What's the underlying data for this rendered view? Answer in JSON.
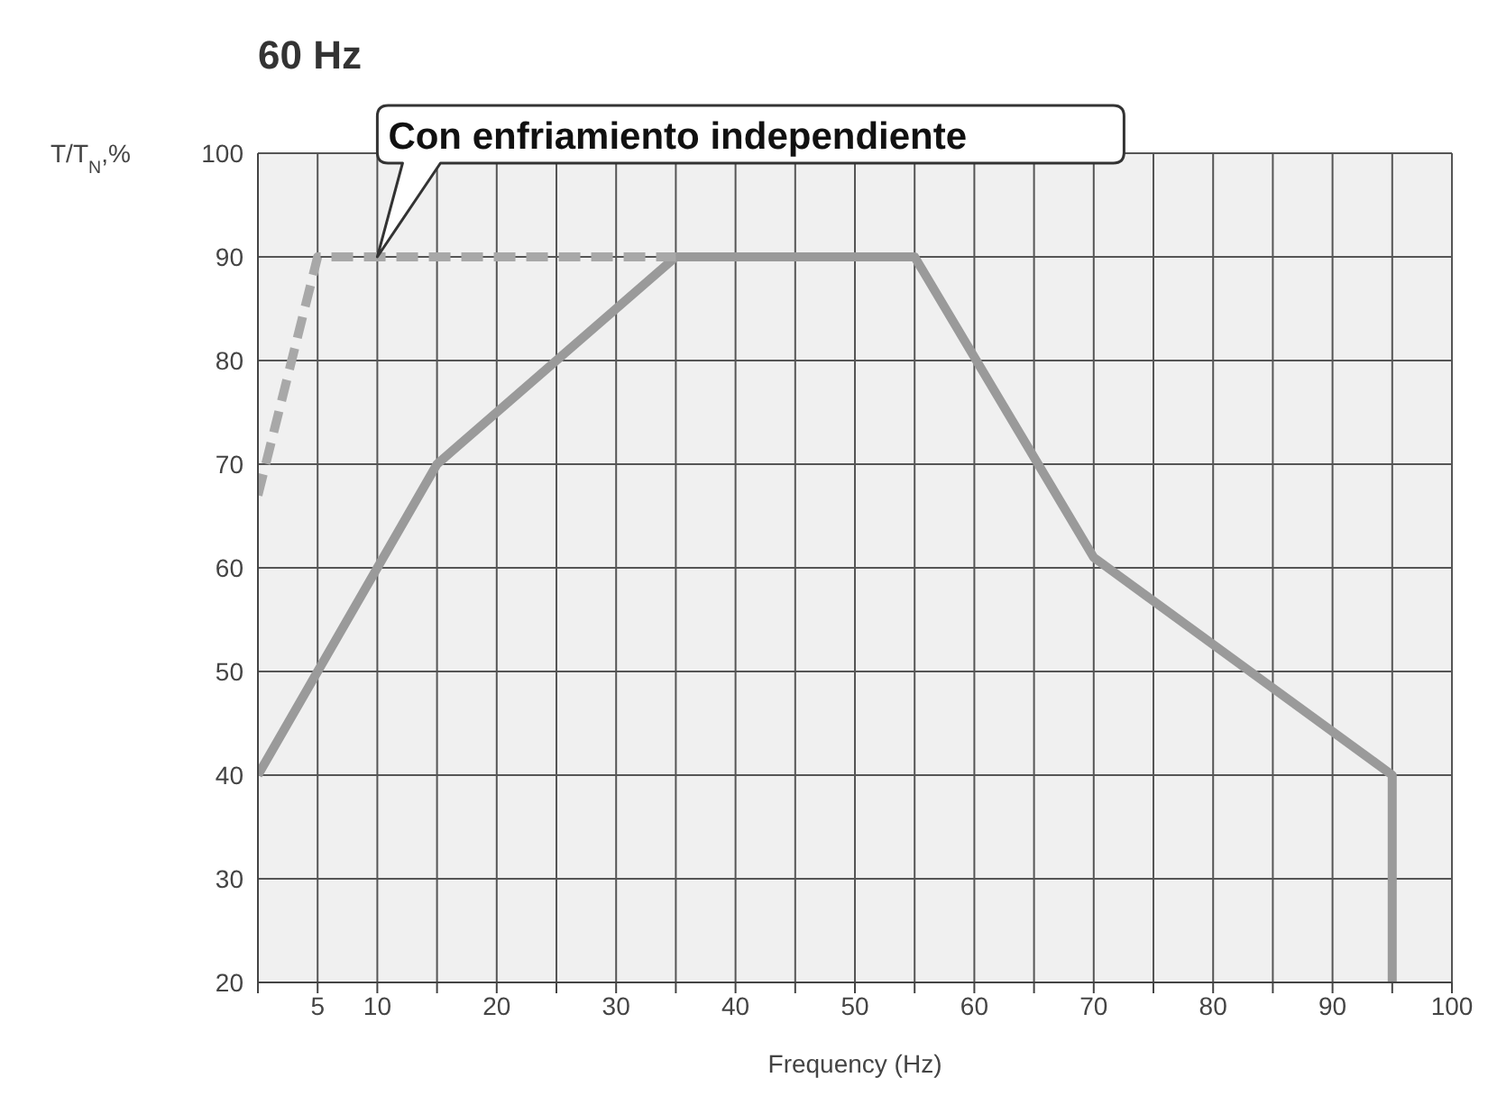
{
  "chart_data": {
    "type": "line",
    "title": "60 Hz",
    "xlabel": "Frequency (Hz)",
    "ylabel": "T/T$_{N}$,%",
    "xlim": [
      0,
      100
    ],
    "xticks": [
      {
        "value": 0,
        "label": null
      },
      5,
      10,
      {
        "value": 15,
        "label": null
      },
      20,
      {
        "value": 25,
        "label": null
      },
      30,
      {
        "value": 35,
        "label": null
      },
      40,
      {
        "value": 45,
        "label": null
      },
      50,
      {
        "value": 55,
        "label": null
      },
      60,
      {
        "value": 65,
        "label": null
      },
      70,
      {
        "value": 75,
        "label": null
      },
      80,
      {
        "value": 85,
        "label": null
      },
      90,
      {
        "value": 95,
        "label": null
      },
      100
    ],
    "ylim": [
      20,
      100
    ],
    "yticks": [
      20,
      30,
      40,
      50,
      60,
      70,
      80,
      90,
      100
    ],
    "grid": true,
    "marker": "none",
    "series": [
      {
        "color": "#9a9a9a",
        "line_style": "solid",
        "x": [
          0,
          15,
          35,
          55,
          70,
          95,
          95
        ],
        "values": [
          40,
          70,
          90,
          90,
          61,
          40,
          20
        ]
      },
      {
        "color": "#a8a8a8",
        "line_style": "dashed",
        "x": [
          0,
          5,
          35
        ],
        "values": [
          67,
          90,
          90
        ]
      }
    ],
    "annotations": [
      {
        "text": "Con enfriamiento independiente",
        "x": 10,
        "y": 90
      }
    ]
  }
}
